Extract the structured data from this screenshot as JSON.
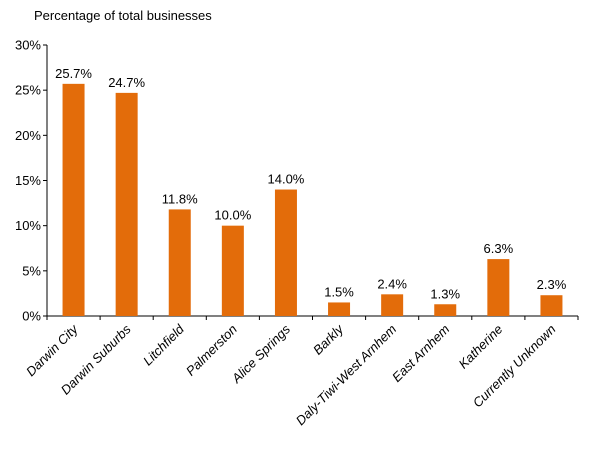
{
  "chart_data": {
    "type": "bar",
    "title": "",
    "xlabel": "",
    "ylabel": "Percentage of total businesses",
    "ylim": [
      0,
      30
    ],
    "yticks": [
      "0%",
      "5%",
      "10%",
      "15%",
      "20%",
      "25%",
      "30%"
    ],
    "ytick_values": [
      0,
      5,
      10,
      15,
      20,
      25,
      30
    ],
    "categories": [
      "Darwin City",
      "Darwin Suburbs",
      "Litchfield",
      "Palmerston",
      "Alice Springs",
      "Barkly",
      "Daly-Tiwi-West Arnhem",
      "East Arnhem",
      "Katherine",
      "Currently Unknown"
    ],
    "values": [
      25.7,
      24.7,
      11.8,
      10.0,
      14.0,
      1.5,
      2.4,
      1.3,
      6.3,
      2.3
    ],
    "data_labels": [
      "25.7%",
      "24.7%",
      "11.8%",
      "10.0%",
      "14.0%",
      "1.5%",
      "2.4%",
      "1.3%",
      "6.3%",
      "2.3%"
    ],
    "bar_color": "#E36C0A",
    "grid": false,
    "legend": "none"
  }
}
